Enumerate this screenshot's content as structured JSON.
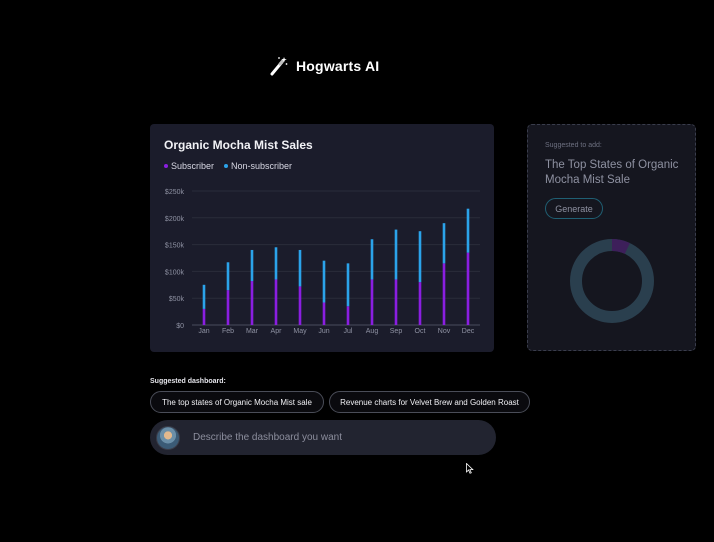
{
  "header": {
    "app_name": "Hogwarts AI",
    "icon": "magic-wand-icon"
  },
  "chart_card": {
    "title": "Organic Mocha Mist Sales"
  },
  "chart_data": {
    "type": "bar",
    "stacked": true,
    "title": "Organic Mocha Mist Sales",
    "categories": [
      "Jan",
      "Feb",
      "Mar",
      "Apr",
      "May",
      "Jun",
      "Jul",
      "Aug",
      "Sep",
      "Oct",
      "Nov",
      "Dec"
    ],
    "series": [
      {
        "name": "Subscriber",
        "color": "#8a1ee0",
        "values": [
          30,
          65,
          82,
          85,
          72,
          42,
          35,
          85,
          85,
          80,
          115,
          135
        ]
      },
      {
        "name": "Non-subscriber",
        "color": "#2ba3ea",
        "values": [
          45,
          52,
          58,
          60,
          68,
          78,
          80,
          75,
          93,
          95,
          75,
          82
        ]
      }
    ],
    "ylim": [
      0,
      250
    ],
    "yticks": [
      "$0",
      "$50k",
      "$100k",
      "$150k",
      "$200k",
      "$250k"
    ],
    "ytick_values": [
      0,
      50,
      100,
      150,
      200,
      250
    ],
    "grid": true,
    "legend_position": "top-left"
  },
  "suggestion": {
    "label": "Suggested to add:",
    "title": "The Top States of Organic Mocha Mist Sale",
    "button": "Generate",
    "donut_colors": [
      "#2a3f4e",
      "#3d1f5a"
    ],
    "donut_share": 0.07
  },
  "suggested_dashboard": {
    "label": "Suggested dashboard:",
    "chips": [
      "The top states of Organic Mocha Mist sale",
      "Revenue charts for Velvet Brew and Golden Roast"
    ]
  },
  "prompt": {
    "placeholder": "Describe the dashboard you want"
  }
}
